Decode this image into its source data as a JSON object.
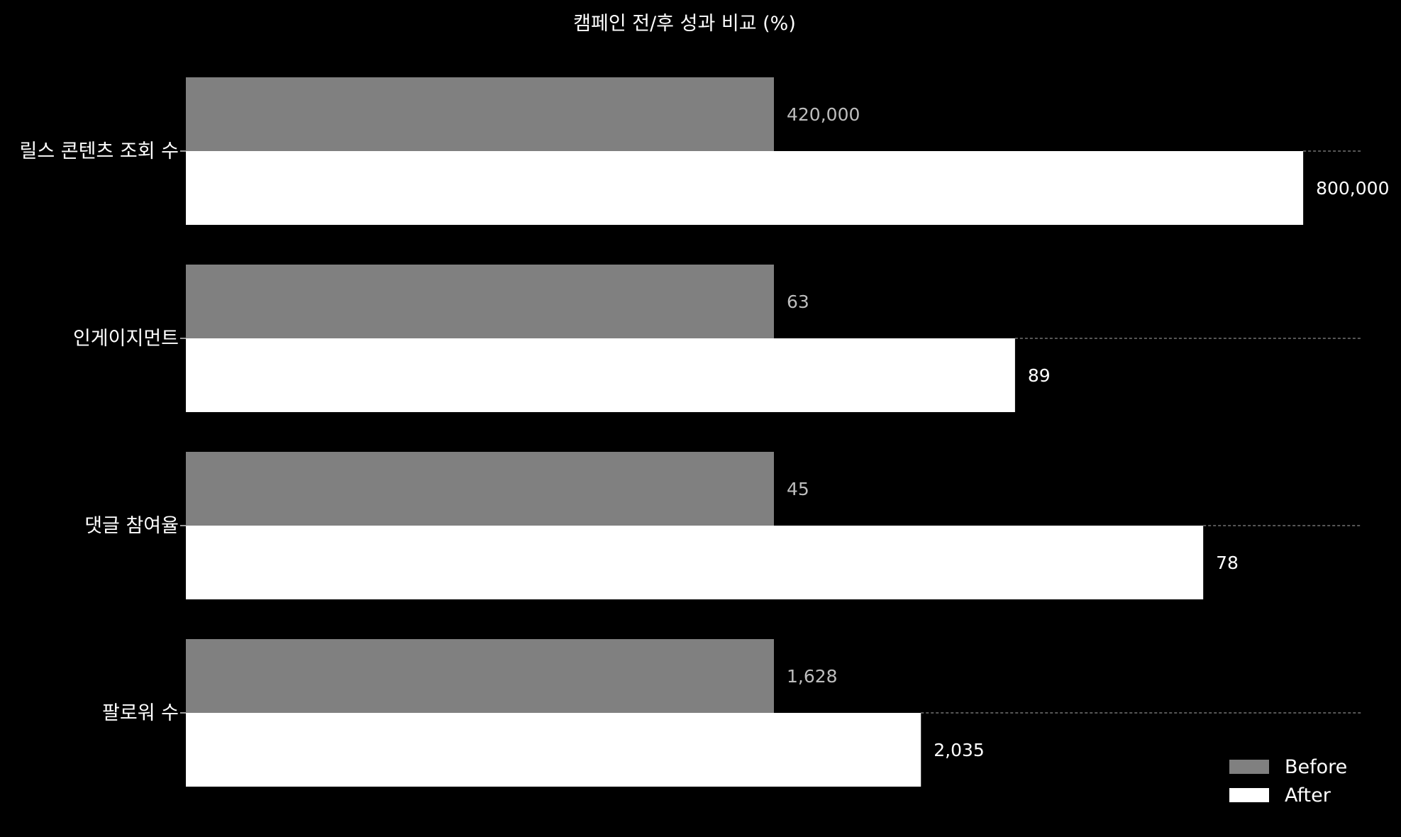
{
  "chart_data": {
    "type": "bar",
    "orientation": "horizontal",
    "title": "캠페인 전/후 성과 비교 (%)",
    "categories": [
      "릴스 콘텐츠 조회 수",
      "인게이지먼트",
      "댓글 참여율",
      "팔로워 수"
    ],
    "series": [
      {
        "name": "Before",
        "values": [
          420000,
          63,
          45,
          1628
        ],
        "labels": [
          "420,000",
          "63",
          "45",
          "1,628"
        ],
        "display_pct": [
          50,
          50,
          50,
          50
        ],
        "color": "#808080"
      },
      {
        "name": "After",
        "values": [
          800000,
          89,
          78,
          2035
        ],
        "labels": [
          "800,000",
          "89",
          "78",
          "2,035"
        ],
        "display_pct": [
          95,
          70.5,
          86.5,
          62.5
        ],
        "color": "#ffffff"
      }
    ],
    "legend": "bottom-right",
    "grid": false,
    "colors": {
      "background": "#000000",
      "before": "#808080",
      "after": "#ffffff",
      "guide": "#8a8a8a"
    }
  }
}
